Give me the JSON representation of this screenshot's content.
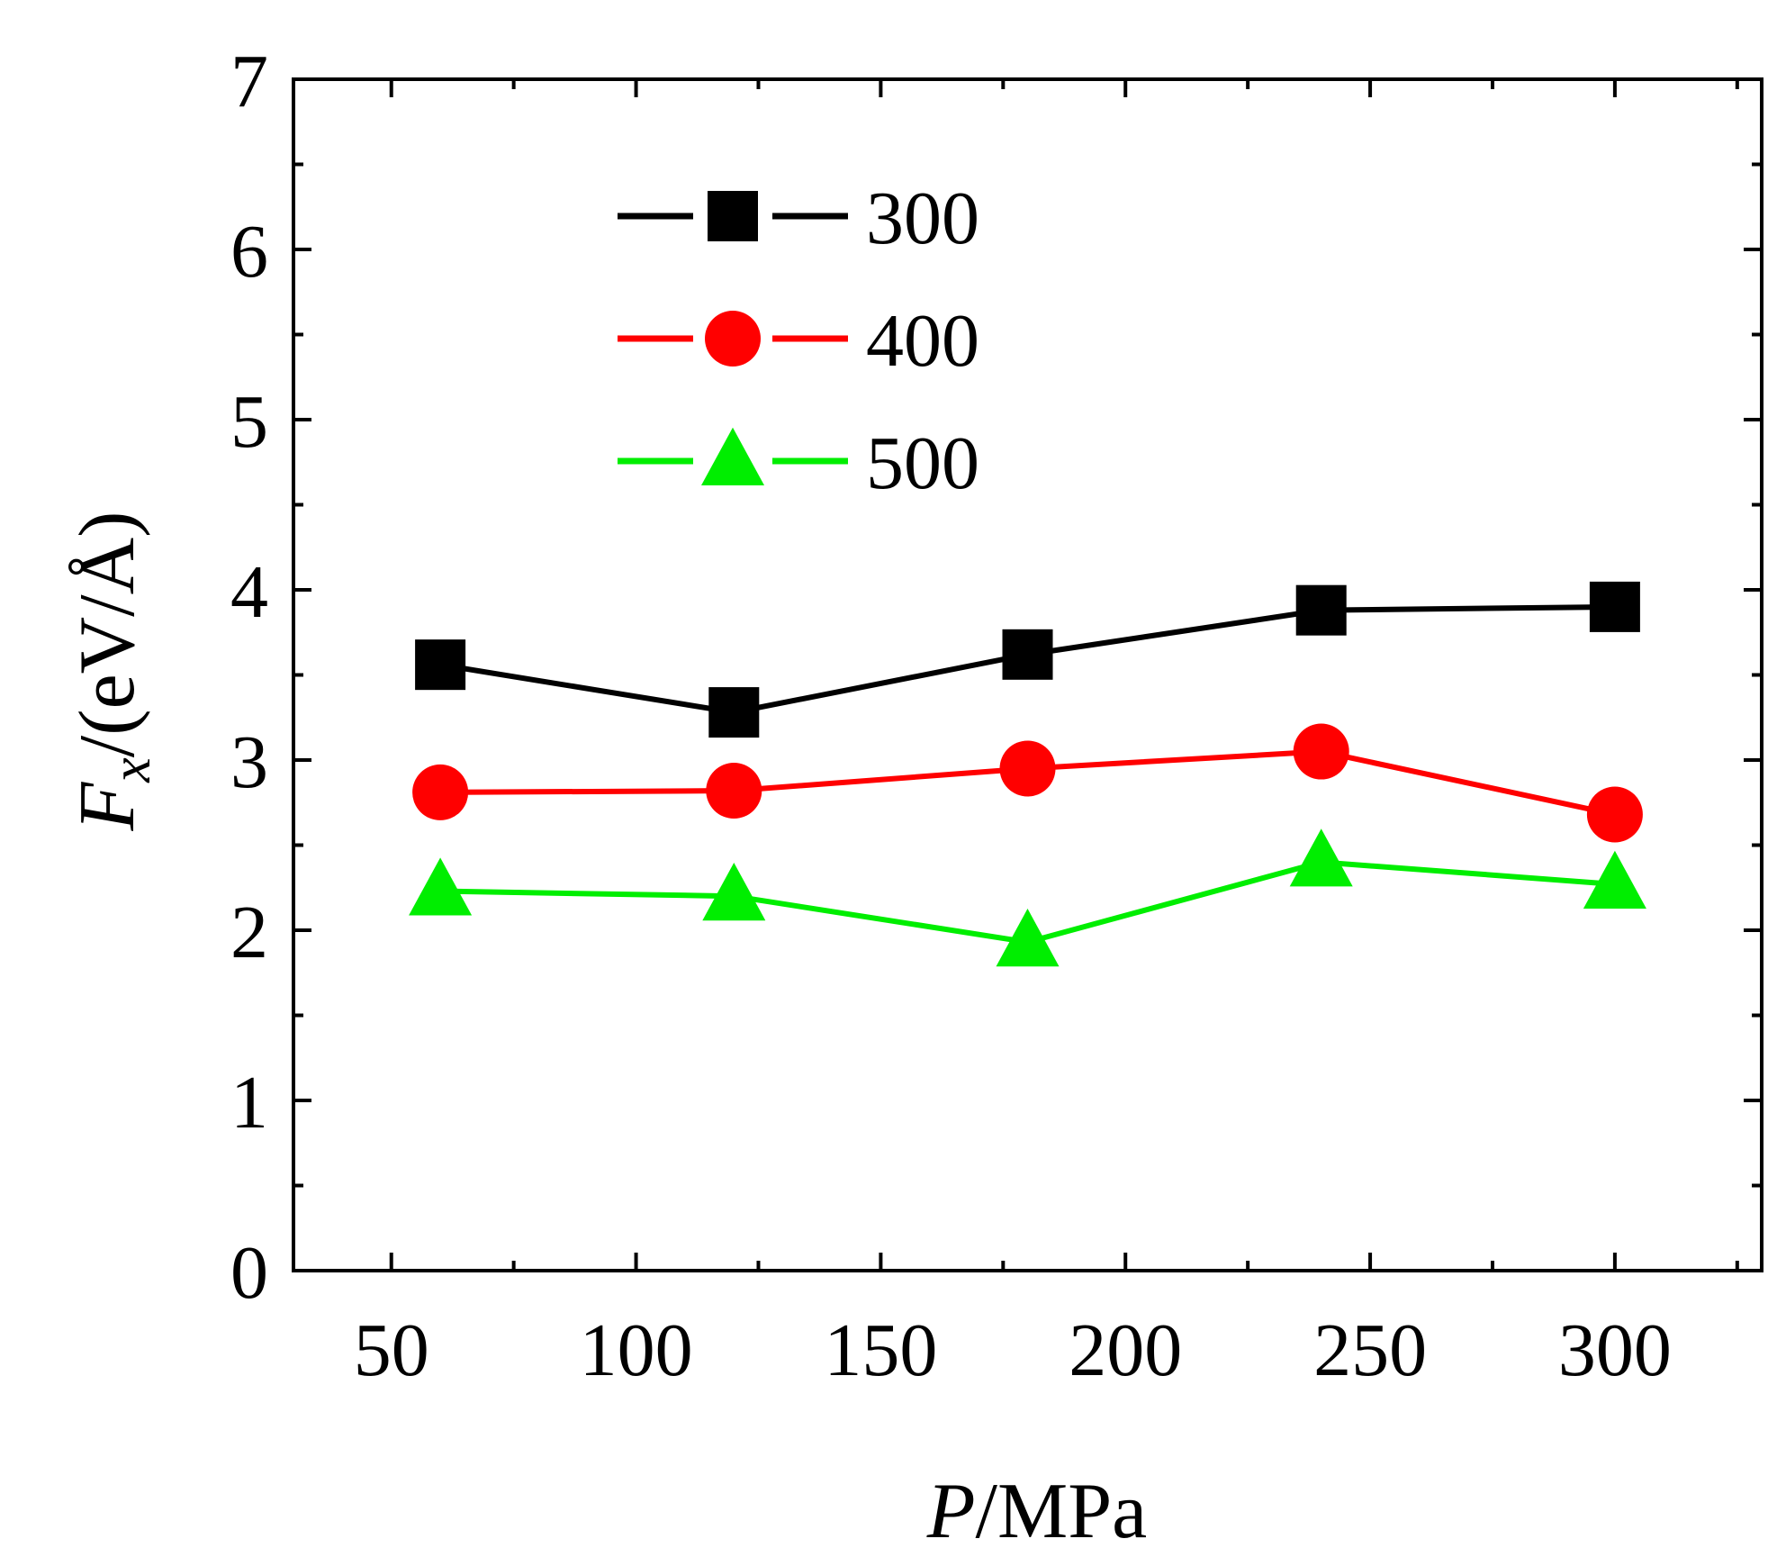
{
  "chart_data": {
    "type": "line",
    "title": "",
    "xlabel": {
      "italic": "P",
      "rest": "/MPa"
    },
    "ylabel": {
      "italic": "F",
      "subscript": "x",
      "rest": "/(eV/Å)"
    },
    "xlim": [
      30,
      330
    ],
    "ylim": [
      0,
      7
    ],
    "x_ticks": [
      50,
      100,
      150,
      200,
      250,
      300
    ],
    "x_minor_ticks": [
      75,
      125,
      175,
      225,
      275,
      325
    ],
    "y_ticks": [
      0,
      1,
      2,
      3,
      4,
      5,
      6,
      7
    ],
    "y_minor_ticks": [
      0.5,
      1.5,
      2.5,
      3.5,
      4.5,
      5.5,
      6.5
    ],
    "legend_position": "top-left",
    "grid": false,
    "series": [
      {
        "name": "300",
        "marker": "square",
        "color": "#000000",
        "x": [
          60,
          120,
          180,
          240,
          300
        ],
        "values": [
          3.56,
          3.28,
          3.62,
          3.88,
          3.9
        ]
      },
      {
        "name": "400",
        "marker": "circle",
        "color": "#ff0000",
        "x": [
          60,
          120,
          180,
          240,
          300
        ],
        "values": [
          2.81,
          2.82,
          2.95,
          3.05,
          2.68
        ]
      },
      {
        "name": "500",
        "marker": "triangle",
        "color": "#00ee00",
        "x": [
          60,
          120,
          180,
          240,
          300
        ],
        "values": [
          2.23,
          2.2,
          1.93,
          2.4,
          2.27
        ]
      }
    ]
  }
}
